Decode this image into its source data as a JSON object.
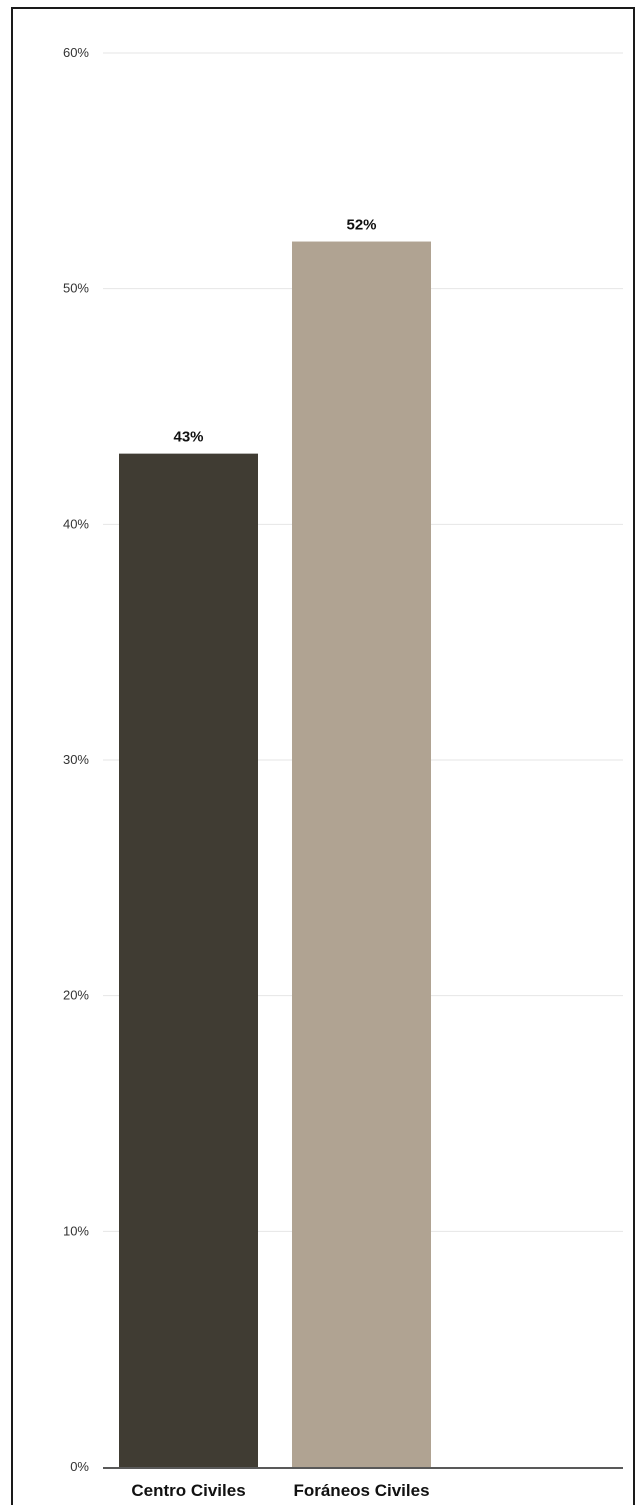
{
  "chart_data": {
    "type": "bar",
    "categories": [
      "Centro Civiles",
      "Foráneos Civiles"
    ],
    "values": [
      43,
      52
    ],
    "value_labels": [
      "43%",
      "52%"
    ],
    "colors": [
      "#403c33",
      "#b0a392"
    ],
    "ylim": [
      0,
      60
    ],
    "yticks": [
      0,
      10,
      20,
      30,
      40,
      50,
      60
    ],
    "ytick_labels": [
      "0%",
      "10%",
      "20%",
      "30%",
      "40%",
      "50%",
      "60%"
    ],
    "title": "",
    "xlabel": "",
    "ylabel": "",
    "grid": true,
    "legend": "none"
  }
}
